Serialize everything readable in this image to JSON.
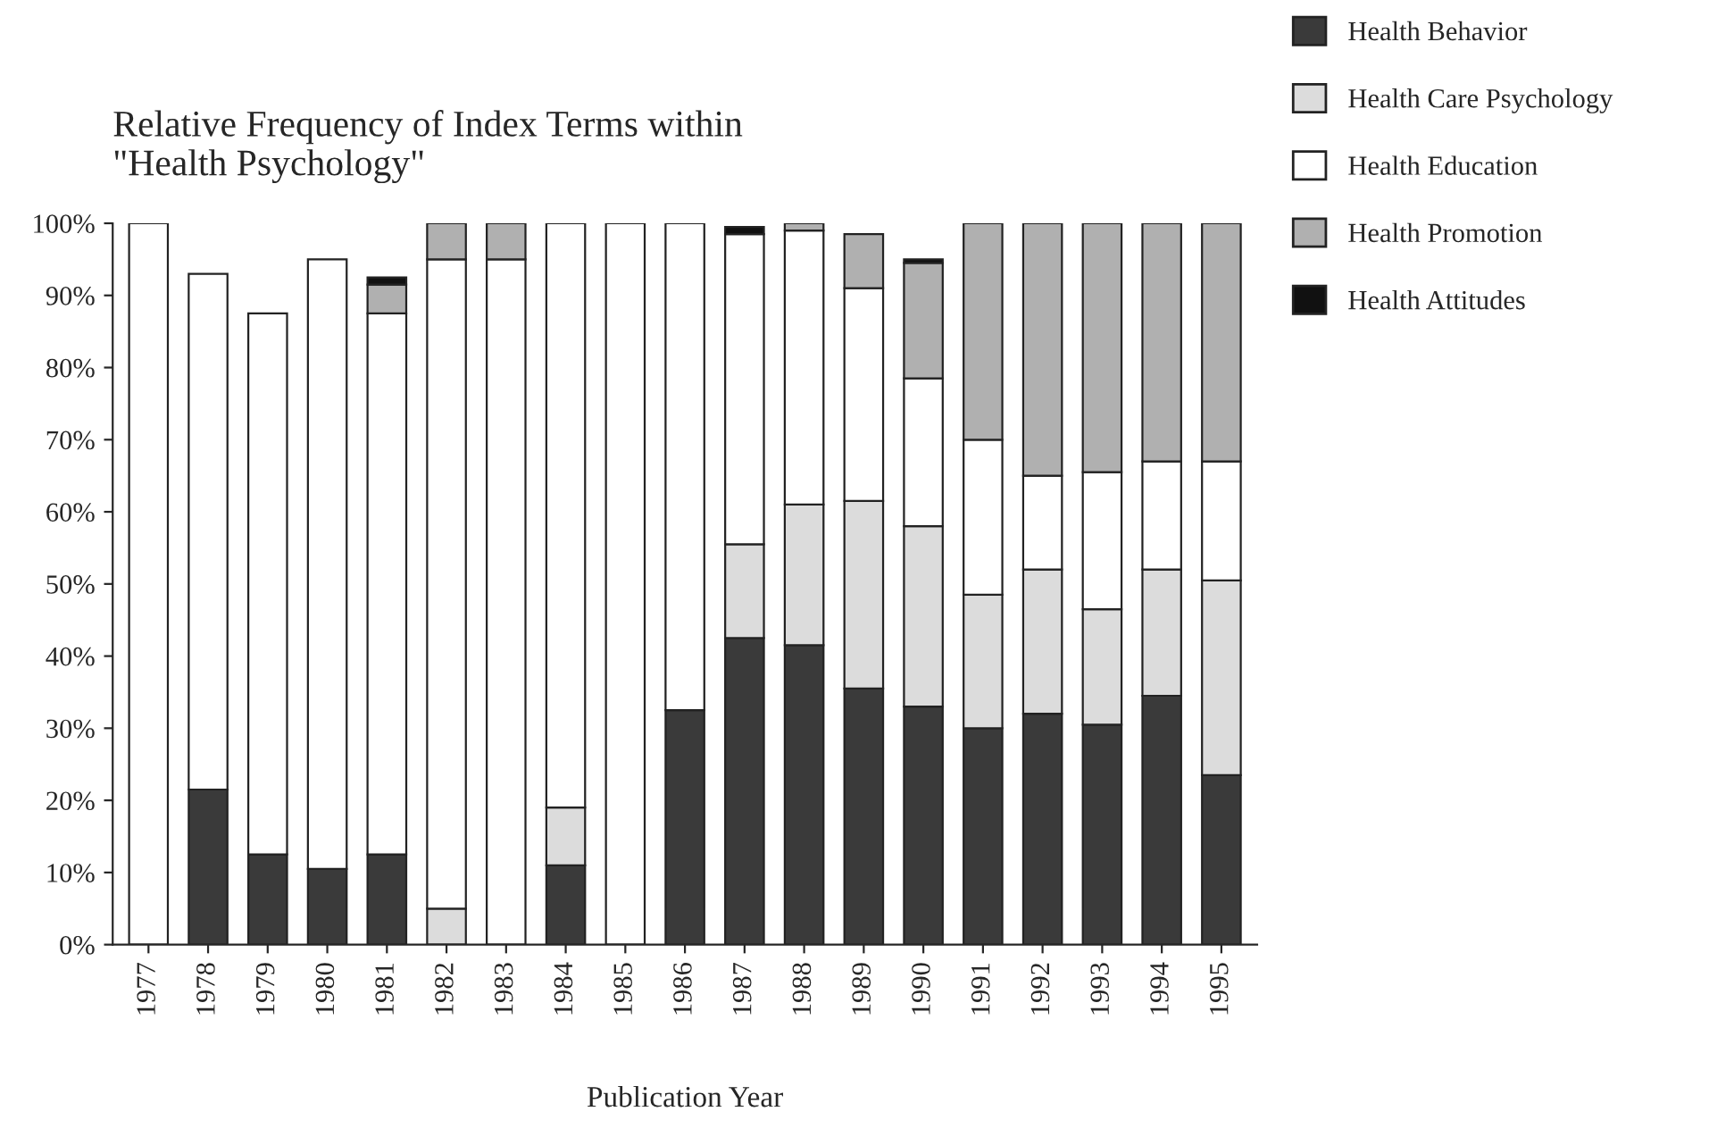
{
  "chart_data": {
    "type": "bar",
    "stacked": true,
    "title": "Relative Frequency of Index Terms within\n\"Health Psychology\"",
    "xlabel": "Publication Year",
    "categories": [
      "1977",
      "1978",
      "1979",
      "1980",
      "1981",
      "1982",
      "1983",
      "1984",
      "1985",
      "1986",
      "1987",
      "1988",
      "1989",
      "1990",
      "1991",
      "1992",
      "1993",
      "1994",
      "1995"
    ],
    "series": [
      {
        "name": "Health Behavior",
        "color": "#3a3a3a",
        "values": [
          0,
          21.5,
          12.5,
          10.5,
          12.5,
          0,
          0,
          11,
          0,
          32.5,
          42.5,
          41.5,
          35.5,
          33,
          30,
          32,
          30.5,
          34.5,
          23.5
        ]
      },
      {
        "name": "Health Care Psychology",
        "color": "#dcdcdc",
        "values": [
          0,
          0,
          0,
          0,
          0,
          5,
          0,
          8,
          0,
          0,
          13,
          19.5,
          26,
          25,
          18.5,
          20,
          16,
          17.5,
          27
        ]
      },
      {
        "name": "Health Education",
        "color": "#ffffff",
        "values": [
          100,
          71.5,
          75,
          84.5,
          75,
          90,
          95,
          81,
          100,
          67.5,
          43,
          38,
          29.5,
          20.5,
          21.5,
          13,
          19,
          15,
          16.5
        ]
      },
      {
        "name": "Health Promotion",
        "color": "#b0b0b0",
        "values": [
          0,
          0,
          0,
          0,
          4,
          5,
          5,
          0,
          0,
          0,
          0,
          1,
          7.5,
          16,
          30,
          35,
          34.5,
          33,
          33
        ]
      },
      {
        "name": "Health Attitudes",
        "color": "#111111",
        "values": [
          0,
          0,
          0,
          0,
          1,
          0,
          0,
          0,
          0,
          0,
          1,
          0,
          0,
          0.5,
          0,
          0,
          0,
          0,
          0
        ]
      }
    ],
    "ylim": [
      0,
      100
    ],
    "yticks": [
      {
        "value": 0,
        "label": "0%"
      },
      {
        "value": 10,
        "label": "10%"
      },
      {
        "value": 20,
        "label": "20%"
      },
      {
        "value": 30,
        "label": "30%"
      },
      {
        "value": 40,
        "label": "40%"
      },
      {
        "value": 50,
        "label": "50%"
      },
      {
        "value": 60,
        "label": "60%"
      },
      {
        "value": 70,
        "label": "70%"
      },
      {
        "value": 80,
        "label": "80%"
      },
      {
        "value": 90,
        "label": "90%"
      },
      {
        "value": 100,
        "label": "100%"
      }
    ],
    "grid": false,
    "legend": "top right"
  }
}
